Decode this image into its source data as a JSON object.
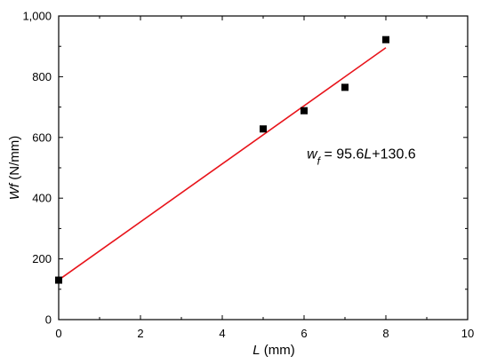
{
  "chart_data": {
    "type": "scatter",
    "title": "",
    "xlabel": {
      "italic": "L",
      "rest": " (mm)"
    },
    "ylabel": {
      "italic": "Wf",
      "rest": " (N/mm)"
    },
    "xlim": [
      0,
      10
    ],
    "ylim": [
      0,
      1000
    ],
    "xticks": [
      0,
      2,
      4,
      6,
      8,
      10
    ],
    "yticks": [
      0,
      200,
      400,
      600,
      800,
      1000
    ],
    "xtick_labels": [
      "0",
      "2",
      "4",
      "6",
      "8",
      "10"
    ],
    "ytick_labels": [
      "0",
      "200",
      "400",
      "600",
      "800",
      "1,000"
    ],
    "grid": false,
    "series": [
      {
        "type": "scatter",
        "marker": "square",
        "color": "#000000",
        "points": [
          {
            "x": 0,
            "y": 130
          },
          {
            "x": 5,
            "y": 628
          },
          {
            "x": 6,
            "y": 688
          },
          {
            "x": 7,
            "y": 765
          },
          {
            "x": 8,
            "y": 922
          }
        ]
      },
      {
        "type": "line",
        "color": "#e8141b",
        "slope": 95.6,
        "intercept": 130.6,
        "x_range": [
          0,
          8
        ]
      }
    ],
    "annotation": {
      "x": 7.4,
      "y": 530,
      "parts": [
        {
          "text": "w",
          "style": "italic",
          "sub": false
        },
        {
          "text": "f",
          "style": "italic",
          "sub": true
        },
        {
          "text": " = 95.6",
          "style": "normal",
          "sub": false
        },
        {
          "text": "L",
          "style": "italic",
          "sub": false
        },
        {
          "text": "+130.6",
          "style": "normal",
          "sub": false
        }
      ]
    }
  }
}
